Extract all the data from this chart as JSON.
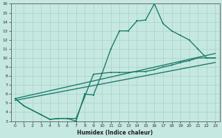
{
  "xlabel": "Humidex (Indice chaleur)",
  "xlim": [
    -0.5,
    23.5
  ],
  "ylim": [
    3,
    16
  ],
  "xticks": [
    0,
    1,
    2,
    3,
    4,
    5,
    6,
    7,
    8,
    9,
    10,
    11,
    12,
    13,
    14,
    15,
    16,
    17,
    18,
    19,
    20,
    21,
    22,
    23
  ],
  "yticks": [
    3,
    4,
    5,
    6,
    7,
    8,
    9,
    10,
    11,
    12,
    13,
    14,
    15,
    16
  ],
  "line_color": "#1a7a6a",
  "bg_color": "#c5e8e0",
  "grid_color": "#aad0c8",
  "curve1_x": [
    0,
    1,
    2,
    3,
    4,
    5,
    6,
    7,
    8,
    9,
    10,
    11,
    12,
    13,
    14,
    15,
    16,
    17,
    18,
    19,
    20,
    21,
    22,
    23
  ],
  "curve1_y": [
    5.5,
    4.7,
    4.2,
    3.7,
    3.2,
    3.3,
    3.3,
    3.0,
    6.0,
    5.9,
    8.3,
    11.0,
    13.0,
    13.0,
    14.1,
    14.2,
    16.0,
    13.8,
    13.0,
    12.5,
    12.0,
    11.0,
    10.0,
    10.0
  ],
  "curve2_x": [
    0,
    1,
    2,
    3,
    4,
    5,
    6,
    7,
    8,
    9,
    10,
    11,
    12,
    13,
    14,
    15,
    16,
    17,
    18,
    19,
    20,
    21,
    22,
    23
  ],
  "curve2_y": [
    5.5,
    4.7,
    4.2,
    3.7,
    3.2,
    3.3,
    3.3,
    3.3,
    5.7,
    8.2,
    8.3,
    8.4,
    8.4,
    8.4,
    8.5,
    8.5,
    8.7,
    9.0,
    9.2,
    9.5,
    9.7,
    10.0,
    10.0,
    10.0
  ],
  "line1_x": [
    0,
    23
  ],
  "line1_y": [
    5.5,
    10.5
  ],
  "line2_x": [
    0,
    23
  ],
  "line2_y": [
    5.3,
    9.5
  ]
}
